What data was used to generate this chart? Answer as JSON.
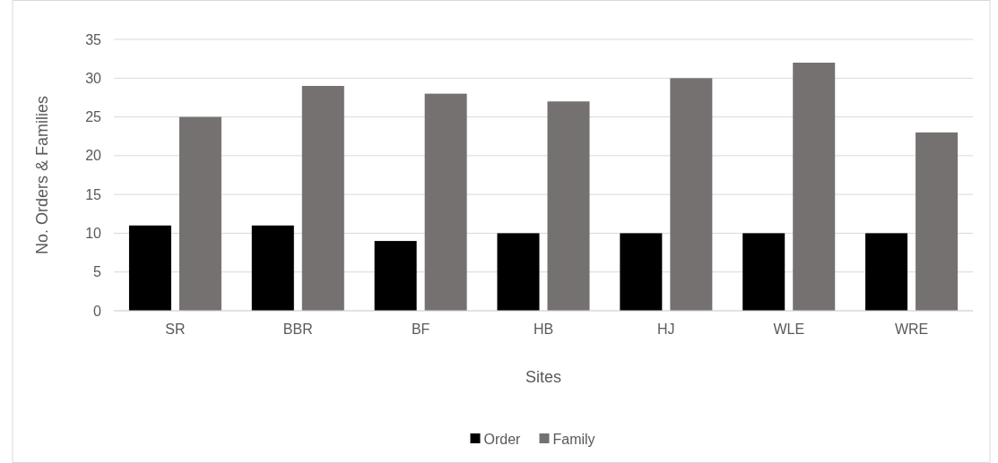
{
  "chart_data": {
    "type": "bar",
    "xlabel": "Sites",
    "ylabel": "No. Orders & Families",
    "categories": [
      "SR",
      "BBR",
      "BF",
      "HB",
      "HJ",
      "WLE",
      "WRE"
    ],
    "series": [
      {
        "name": "Order",
        "color": "#000000",
        "values": [
          11,
          11,
          9,
          10,
          10,
          10,
          10
        ]
      },
      {
        "name": "Family",
        "color": "#767171",
        "values": [
          25,
          29,
          28,
          27,
          30,
          32,
          23
        ]
      }
    ],
    "ylim": [
      0,
      35
    ],
    "yticks": [
      0,
      5,
      10,
      15,
      20,
      25,
      30,
      35
    ],
    "grid": "y",
    "legend": "bottom"
  }
}
